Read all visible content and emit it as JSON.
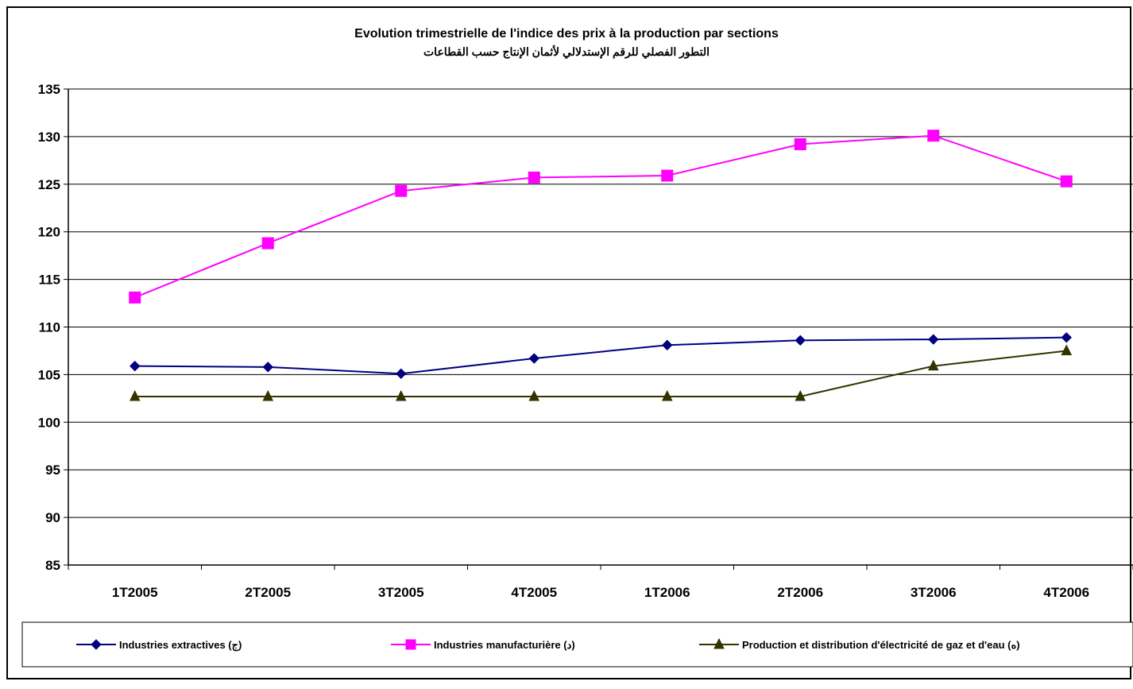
{
  "chart_data": {
    "type": "line",
    "title": "Evolution trimestrielle de l'indice des prix à la production par sections",
    "subtitle": "التطور الفصلي للرقم الإستدلالي لأثمان الإنتاج حسب القطاعات",
    "categories": [
      "1T2005",
      "2T2005",
      "3T2005",
      "4T2005",
      "1T2006",
      "2T2006",
      "3T2006",
      "4T2006"
    ],
    "ylim": [
      85,
      135
    ],
    "yticks": [
      "135",
      "130",
      "125",
      "120",
      "115",
      "110",
      "105",
      "100",
      "95",
      "90",
      "85"
    ],
    "grid": true,
    "legend_position": "bottom",
    "series": [
      {
        "name": "Industries extractives (ج)",
        "color": "#000080",
        "marker": "diamond",
        "values": [
          105.9,
          105.8,
          105.1,
          106.7,
          108.1,
          108.6,
          108.7,
          108.9
        ]
      },
      {
        "name": "Industries manufacturière (د)",
        "color": "#FF00FF",
        "marker": "square",
        "values": [
          113.1,
          118.8,
          124.3,
          125.7,
          125.9,
          129.2,
          130.1,
          125.3
        ]
      },
      {
        "name": "Production et distribution d'électricité de gaz et d'eau (ه)",
        "color": "#333300",
        "marker": "triangle",
        "values": [
          102.7,
          102.7,
          102.7,
          102.7,
          102.7,
          102.7,
          105.9,
          107.5
        ]
      }
    ]
  }
}
